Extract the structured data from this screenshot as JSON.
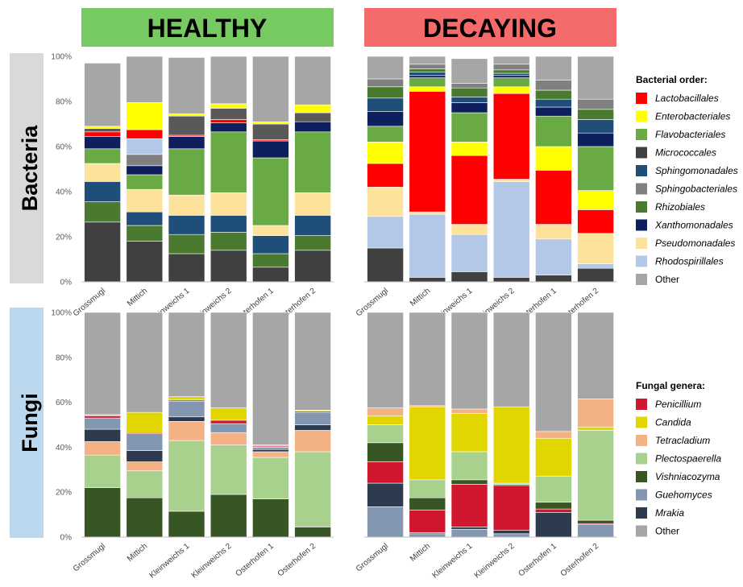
{
  "headers": {
    "healthy": "HEALTHY",
    "decaying": "DECAYING"
  },
  "row_labels": {
    "bacteria": "Bacteria",
    "fungi": "Fungi"
  },
  "y_ticks": [
    "0%",
    "20%",
    "40%",
    "60%",
    "80%",
    "100%"
  ],
  "colors": {
    "healthy_header": "#77c962",
    "decaying_header": "#f56a6a",
    "bacteria_band": "#d9d9d9",
    "fungi_band": "#bcd8ee"
  },
  "chart_data": [
    {
      "type": "bar",
      "stacked": true,
      "panel": "Bacteria / HEALTHY",
      "categories": [
        "Grossmugl",
        "Mittich",
        "Kleinweichs 1",
        "Kleinweichs 2",
        "Osterhofen 1",
        "Osterhofen 2"
      ],
      "ylim": [
        0,
        100
      ],
      "ytick_labels": [
        "0%",
        "20%",
        "40%",
        "60%",
        "80%",
        "100%"
      ],
      "series": [
        {
          "name": "Micrococcales",
          "color": "#404040",
          "values": [
            26.5,
            18,
            12.5,
            14,
            6.5,
            14
          ]
        },
        {
          "name": "Rhizobiales",
          "color": "#4a7a2f",
          "values": [
            9,
            7,
            8.5,
            8,
            6,
            6.5
          ]
        },
        {
          "name": "Sphingomonadales",
          "color": "#1f4e79",
          "values": [
            9,
            6,
            8.5,
            7.5,
            8,
            9
          ]
        },
        {
          "name": "Pseudomonadales",
          "color": "#fde29b",
          "values": [
            8,
            10,
            9,
            10,
            4.5,
            10
          ]
        },
        {
          "name": "Flavobacteriales",
          "color": "#6aaa45",
          "values": [
            6.5,
            6.5,
            20.5,
            27,
            30,
            27
          ]
        },
        {
          "name": "Xanthomonadales",
          "color": "#0d1f5c",
          "values": [
            5.5,
            4,
            5.5,
            4,
            7.5,
            4.5
          ]
        },
        {
          "name": "Sphingobacteriales",
          "color": "#808080",
          "values": [
            0,
            5,
            0,
            0,
            0,
            0
          ]
        },
        {
          "name": "Rhodospirillales",
          "color": "#b3c7e6",
          "values": [
            0,
            7,
            0,
            0,
            0,
            0
          ]
        },
        {
          "name": "Lactobacillales",
          "color": "#ff0000",
          "values": [
            2,
            4,
            0.5,
            1.5,
            0.5,
            0
          ]
        },
        {
          "name": "Micrococcales",
          "color": "#595959",
          "values": [
            1.5,
            0,
            8.5,
            5,
            7,
            4
          ]
        },
        {
          "name": "Enterobacteriales",
          "color": "#ffff00",
          "values": [
            1,
            12,
            1,
            2,
            1,
            3.5
          ]
        },
        {
          "name": "Other",
          "color": "#a6a6a6",
          "values": [
            28,
            20.5,
            25,
            21,
            29,
            21.5
          ]
        }
      ]
    },
    {
      "type": "bar",
      "stacked": true,
      "panel": "Bacteria / DECAYING",
      "categories": [
        "Grossmugl",
        "Mittich",
        "Kleinweichs 1",
        "Kleinweichs 2",
        "Osterhofen 1",
        "Osterhofen 2"
      ],
      "ylim": [
        0,
        100
      ],
      "series": [
        {
          "name": "Micrococcales",
          "color": "#404040",
          "values": [
            15,
            2,
            4.5,
            2,
            3,
            6
          ]
        },
        {
          "name": "Rhodospirillales",
          "color": "#b3c7e6",
          "values": [
            14,
            28,
            16.5,
            42.5,
            16,
            2
          ]
        },
        {
          "name": "Pseudomonadales",
          "color": "#fde29b",
          "values": [
            13,
            1,
            4.5,
            1,
            6.5,
            13.5
          ]
        },
        {
          "name": "Lactobacillales",
          "color": "#ff0000",
          "values": [
            10.5,
            53.5,
            30.5,
            38,
            24,
            10.5
          ]
        },
        {
          "name": "Enterobacteriales",
          "color": "#ffff00",
          "values": [
            9.5,
            2,
            6,
            3,
            10.5,
            8.5
          ]
        },
        {
          "name": "Flavobacteriales",
          "color": "#6aaa45",
          "values": [
            7,
            4,
            13,
            4,
            13.5,
            19.5
          ]
        },
        {
          "name": "Xanthomonadales",
          "color": "#0d1f5c",
          "values": [
            6.5,
            1,
            4.5,
            1,
            4,
            6
          ]
        },
        {
          "name": "Sphingomonadales",
          "color": "#1f4e79",
          "values": [
            6,
            1.5,
            2.5,
            1,
            3.5,
            6
          ]
        },
        {
          "name": "Rhizobiales",
          "color": "#4a7a2f",
          "values": [
            5,
            1.5,
            4,
            1.5,
            4,
            4.5
          ]
        },
        {
          "name": "Sphingobacteriales",
          "color": "#808080",
          "values": [
            3.5,
            2,
            2,
            2.5,
            4.5,
            4.5
          ]
        },
        {
          "name": "Other",
          "color": "#a6a6a6",
          "values": [
            10,
            3.5,
            11,
            3.5,
            10.5,
            19
          ]
        }
      ]
    },
    {
      "type": "bar",
      "stacked": true,
      "panel": "Fungi / HEALTHY",
      "categories": [
        "Grossmugl",
        "Mittich",
        "Kleinweichs 1",
        "Kleinweichs 2",
        "Osterhofen 1",
        "Osterhofen 2"
      ],
      "ylim": [
        0,
        100
      ],
      "ytick_labels": [
        "0%",
        "20%",
        "40%",
        "60%",
        "80%",
        "100%"
      ],
      "series": [
        {
          "name": "Vishniacozyma",
          "color": "#375623",
          "values": [
            22,
            17.5,
            11.5,
            19,
            17,
            4.5
          ]
        },
        {
          "name": "Plectospaerella",
          "color": "#a9d18e",
          "values": [
            14.5,
            12,
            31.5,
            22,
            18.5,
            33.5
          ]
        },
        {
          "name": "Tetracladium",
          "color": "#f4b183",
          "values": [
            6,
            4,
            8.5,
            5.5,
            2.5,
            9.5
          ]
        },
        {
          "name": "Mrakia",
          "color": "#2e3b4e",
          "values": [
            5.5,
            5,
            2,
            0,
            1,
            2.5
          ]
        },
        {
          "name": "Guehomyces",
          "color": "#8497b0",
          "values": [
            5,
            7.5,
            7,
            4,
            1,
            5.5
          ]
        },
        {
          "name": "Penicillium",
          "color": "#d1172d",
          "values": [
            1,
            0.5,
            0.5,
            1.5,
            0.5,
            0.5
          ]
        },
        {
          "name": "Candida",
          "color": "#e2d600",
          "values": [
            0.5,
            9,
            1.5,
            5.5,
            0.5,
            0.5
          ]
        },
        {
          "name": "Other",
          "color": "#a6a6a6",
          "values": [
            45.5,
            44.5,
            37.5,
            42.5,
            59,
            43.5
          ]
        }
      ]
    },
    {
      "type": "bar",
      "stacked": true,
      "panel": "Fungi / DECAYING",
      "categories": [
        "Grossmugl",
        "Mittich",
        "Kleinweichs 1",
        "Kleinweichs 2",
        "Osterhofen 1",
        "Osterhofen 2"
      ],
      "ylim": [
        0,
        100
      ],
      "series": [
        {
          "name": "Guehomyces",
          "color": "#8497b0",
          "values": [
            13.5,
            1.5,
            3.5,
            1.5,
            0,
            5.5
          ]
        },
        {
          "name": "Mrakia",
          "color": "#2e3b4e",
          "values": [
            10.5,
            0.5,
            1,
            1.5,
            11,
            0
          ]
        },
        {
          "name": "Penicillium",
          "color": "#d1172d",
          "values": [
            9.5,
            10,
            19,
            20,
            1.5,
            0.5
          ]
        },
        {
          "name": "Vishniacozyma",
          "color": "#375623",
          "values": [
            8.5,
            5.5,
            2,
            0.5,
            3,
            1.5
          ]
        },
        {
          "name": "Plectospaerella",
          "color": "#a9d18e",
          "values": [
            8,
            8,
            12.5,
            0.5,
            11.5,
            40
          ]
        },
        {
          "name": "Candida",
          "color": "#e2d600",
          "values": [
            4,
            32.5,
            17,
            34,
            17,
            1.5
          ]
        },
        {
          "name": "Tetracladium",
          "color": "#f4b183",
          "values": [
            3.5,
            0.5,
            2,
            0,
            3,
            12.5
          ]
        },
        {
          "name": "Other",
          "color": "#a6a6a6",
          "values": [
            42.5,
            41.5,
            43,
            42,
            53,
            38.5
          ]
        }
      ]
    }
  ],
  "legends": [
    {
      "title": "Bacterial order:",
      "items": [
        {
          "label": "Lactobacillales",
          "color": "#ff0000"
        },
        {
          "label": "Enterobacteriales",
          "color": "#ffff00"
        },
        {
          "label": "Flavobacteriales",
          "color": "#6aaa45"
        },
        {
          "label": "Micrococcales",
          "color": "#404040"
        },
        {
          "label": "Sphingomonadales",
          "color": "#1f4e79"
        },
        {
          "label": "Sphingobacteriales",
          "color": "#808080"
        },
        {
          "label": "Rhizobiales",
          "color": "#4a7a2f"
        },
        {
          "label": "Xanthomonadales",
          "color": "#0d1f5c"
        },
        {
          "label": "Pseudomonadales",
          "color": "#fde29b"
        },
        {
          "label": "Rhodospirillales",
          "color": "#b3c7e6"
        },
        {
          "label": "Other",
          "color": "#a6a6a6"
        }
      ]
    },
    {
      "title": "Fungal genera:",
      "items": [
        {
          "label": "Penicillium",
          "color": "#d1172d"
        },
        {
          "label": "Candida",
          "color": "#e2d600"
        },
        {
          "label": "Tetracladium",
          "color": "#f4b183"
        },
        {
          "label": "Plectospaerella",
          "color": "#a9d18e"
        },
        {
          "label": "Vishniacozyma",
          "color": "#375623"
        },
        {
          "label": "Guehomyces",
          "color": "#8497b0"
        },
        {
          "label": "Mrakia",
          "color": "#2e3b4e"
        },
        {
          "label": "Other",
          "color": "#a6a6a6"
        }
      ]
    }
  ]
}
